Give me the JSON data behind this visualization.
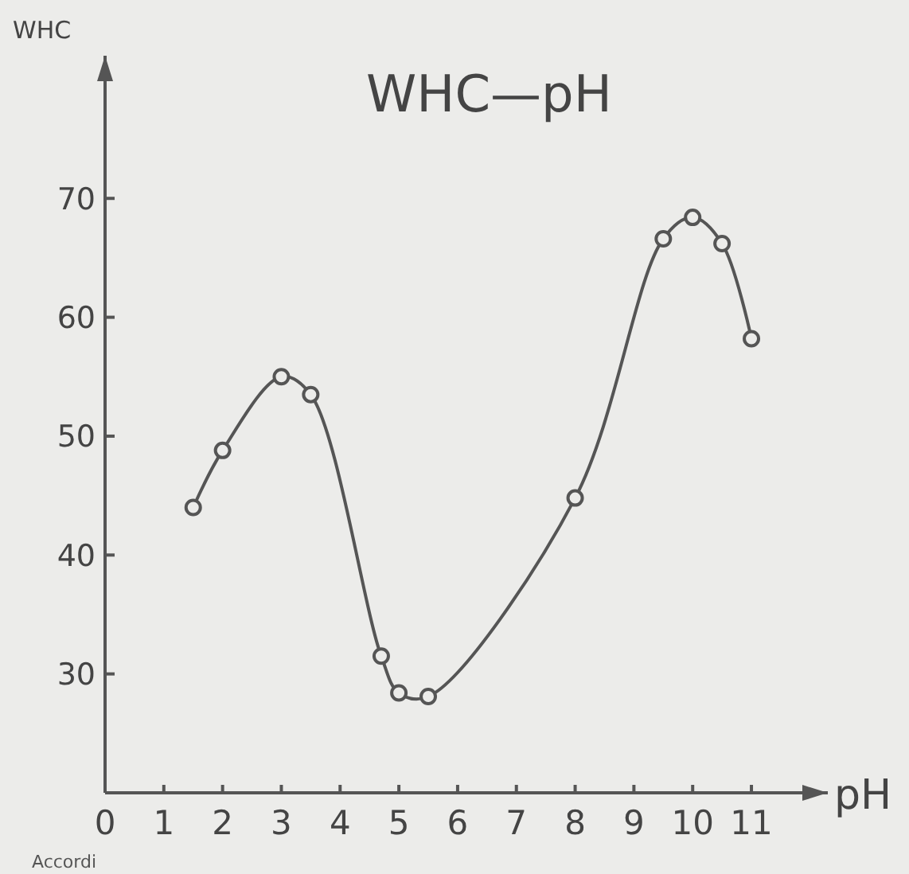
{
  "chart_data": {
    "type": "line",
    "title": "WHC—pH",
    "xlabel": "pH",
    "ylabel": "WHC",
    "x": [
      1.5,
      2,
      3,
      3.5,
      4.7,
      5,
      5.5,
      8,
      9.5,
      10,
      10.5,
      11
    ],
    "values": [
      44,
      48.8,
      55,
      53.5,
      31.5,
      28.4,
      28.1,
      44.8,
      66.6,
      68.4,
      66.2,
      58.2
    ],
    "color": "#555555",
    "marker": "circle",
    "line_style": "solid",
    "xlim": [
      0,
      12.3
    ],
    "xticks": [
      0,
      1,
      2,
      3,
      4,
      5,
      6,
      7,
      8,
      9,
      10,
      11
    ],
    "ylim": [
      20,
      82
    ],
    "yticks": [
      30,
      40,
      50,
      60,
      70
    ],
    "annotations": [
      "Accordi"
    ]
  }
}
